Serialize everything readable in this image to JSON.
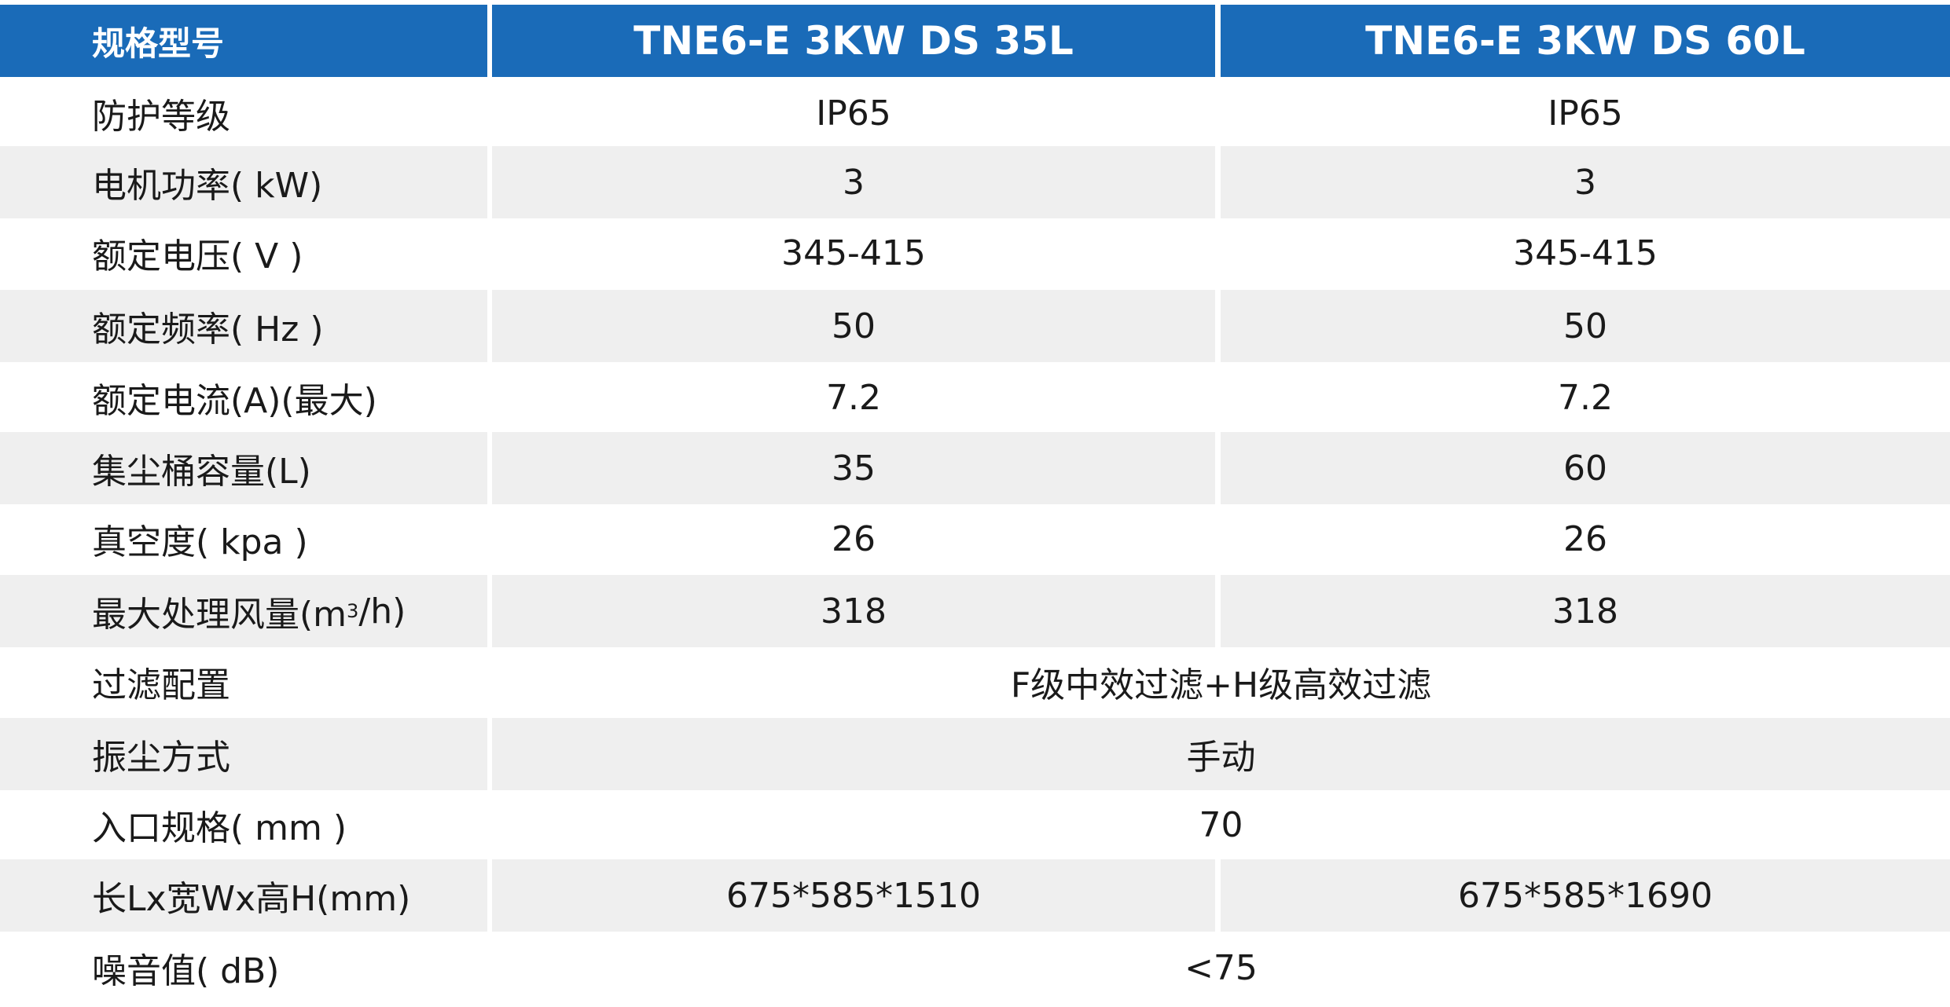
{
  "header": {
    "label": "规格型号",
    "model_a": "TNE6-E 3KW DS 35L",
    "model_b": "TNE6-E 3KW DS 60L"
  },
  "rows": [
    {
      "label": "防护等级",
      "a": "IP65",
      "b": "IP65"
    },
    {
      "label": "电机功率( kW)",
      "a": "3",
      "b": "3"
    },
    {
      "label": "额定电压( V )",
      "a": "345-415",
      "b": "345-415"
    },
    {
      "label": "额定频率( Hz )",
      "a": "50",
      "b": "50"
    },
    {
      "label": "额定电流(A)(最大)",
      "a": "7.2",
      "b": "7.2"
    },
    {
      "label": "集尘桶容量(L)",
      "a": "35",
      "b": "60"
    },
    {
      "label": "真空度( kpa )",
      "a": "26",
      "b": "26"
    },
    {
      "label_prefix": "最大处理风量(m",
      "label_sup": "3",
      "label_suffix": "/h)",
      "a": "318",
      "b": "318"
    },
    {
      "label": "过滤配置",
      "span": "F级中效过滤+H级高效过滤"
    },
    {
      "label": "振尘方式",
      "span": "手动"
    },
    {
      "label": "入口规格( mm )",
      "span": "70"
    },
    {
      "label": "长Lx宽Wx高H(mm)",
      "a": "675*585*1510",
      "b": "675*585*1690"
    },
    {
      "label": "噪音值( dB)",
      "span": "<75"
    }
  ]
}
